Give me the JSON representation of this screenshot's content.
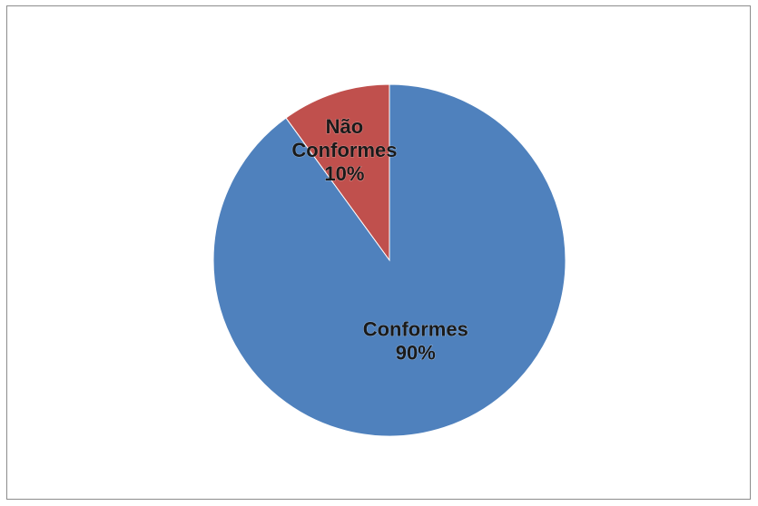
{
  "chart_data": {
    "type": "pie",
    "title": "",
    "slices": [
      {
        "name": "Não Conformes",
        "value": 10,
        "label_lines": [
          "Não",
          "Conformes",
          "10%"
        ],
        "color": "#c0504d"
      },
      {
        "name": "Conformes",
        "value": 90,
        "label_lines": [
          "Conformes",
          "90%"
        ],
        "color": "#4f81bd"
      }
    ],
    "start_angle_deg": 0,
    "direction": "counterclockwise",
    "legend": "none"
  }
}
